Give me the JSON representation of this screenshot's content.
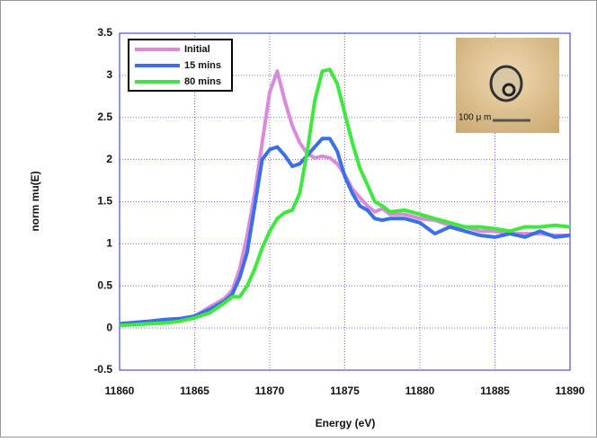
{
  "chart_data": {
    "type": "line",
    "x_label": "Energy (eV)",
    "y_label": "norm mu(E)",
    "x": [
      11860,
      11862,
      11863,
      11864,
      11865,
      11866,
      11867,
      11867.5,
      11868,
      11868.5,
      11869,
      11869.5,
      11870,
      11870.5,
      11871,
      11871.5,
      11872,
      11872.5,
      11873,
      11873.5,
      11874,
      11874.5,
      11875,
      11875.5,
      11876,
      11876.5,
      11877,
      11877.5,
      11878,
      11879,
      11880,
      11881,
      11882,
      11883,
      11884,
      11885,
      11886,
      11887,
      11888,
      11889,
      11890
    ],
    "series": [
      {
        "name": "Initial",
        "color": "#d98bd9",
        "values": [
          0.05,
          0.08,
          0.1,
          0.11,
          0.14,
          0.25,
          0.35,
          0.45,
          0.7,
          1.1,
          1.6,
          2.2,
          2.8,
          3.05,
          2.7,
          2.4,
          2.2,
          2.07,
          2.02,
          2.04,
          2.02,
          1.95,
          1.82,
          1.65,
          1.55,
          1.45,
          1.38,
          1.42,
          1.35,
          1.35,
          1.3,
          1.28,
          1.22,
          1.2,
          1.15,
          1.15,
          1.12,
          1.12,
          1.12,
          1.1,
          1.1
        ]
      },
      {
        "name": "15 mins",
        "color": "#3a6fe8",
        "values": [
          0.05,
          0.08,
          0.1,
          0.11,
          0.14,
          0.22,
          0.32,
          0.4,
          0.6,
          0.9,
          1.45,
          2.0,
          2.12,
          2.15,
          2.05,
          1.92,
          1.95,
          2.05,
          2.15,
          2.25,
          2.25,
          2.1,
          1.8,
          1.6,
          1.45,
          1.4,
          1.3,
          1.28,
          1.3,
          1.3,
          1.25,
          1.12,
          1.2,
          1.15,
          1.1,
          1.08,
          1.12,
          1.08,
          1.15,
          1.08,
          1.1
        ]
      },
      {
        "name": "80 mins",
        "color": "#3ee83e",
        "values": [
          0.03,
          0.05,
          0.06,
          0.08,
          0.12,
          0.18,
          0.3,
          0.37,
          0.37,
          0.5,
          0.7,
          0.95,
          1.15,
          1.3,
          1.37,
          1.4,
          1.6,
          2.1,
          2.7,
          3.05,
          3.07,
          2.9,
          2.55,
          2.2,
          1.9,
          1.7,
          1.5,
          1.45,
          1.38,
          1.4,
          1.35,
          1.3,
          1.25,
          1.2,
          1.2,
          1.18,
          1.15,
          1.2,
          1.2,
          1.22,
          1.2
        ]
      }
    ],
    "xlim": [
      11860,
      11890
    ],
    "xticks": [
      11860,
      11865,
      11870,
      11875,
      11880,
      11885,
      11890
    ],
    "ylim": [
      -0.5,
      3.5
    ],
    "yticks": [
      -0.5,
      0,
      0.5,
      1,
      1.5,
      2,
      2.5,
      3,
      3.5
    ],
    "grid": true,
    "legend": "upper left",
    "inset_label": "100 μ m"
  }
}
